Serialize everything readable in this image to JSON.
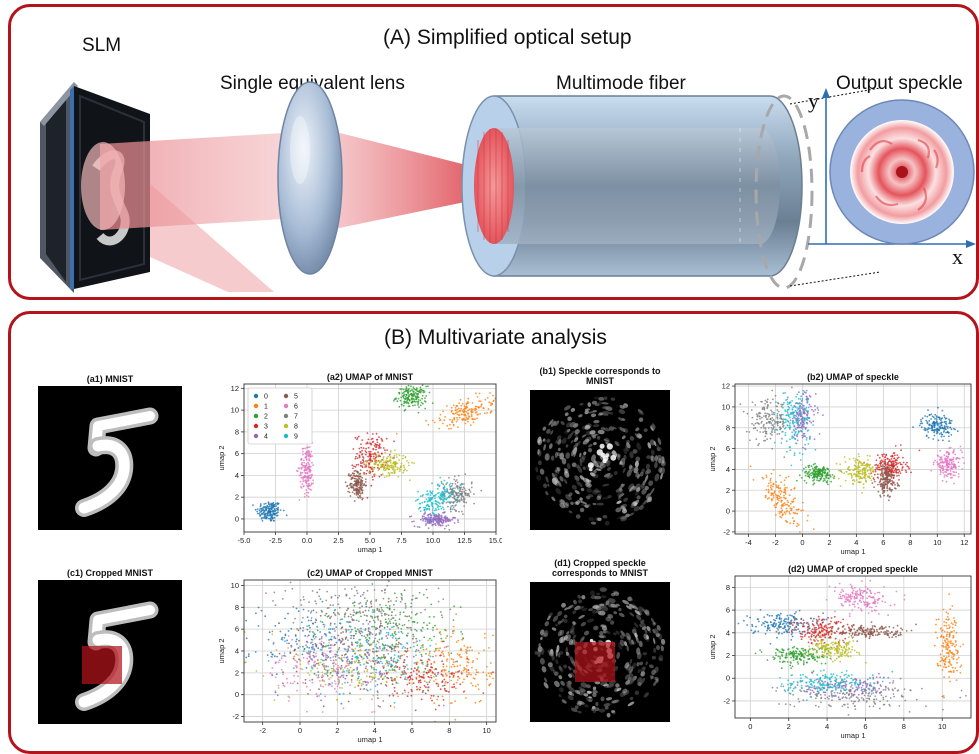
{
  "section_a": {
    "title": "(A) Simplified optical setup",
    "labels": {
      "slm": "SLM",
      "lens": "Single equivalent lens",
      "fiber": "Multimode fiber",
      "output": "Output speckle",
      "axis_y": "y",
      "axis_x": "x"
    }
  },
  "section_b": {
    "title": "(B) Multivariate analysis",
    "a1_title": "(a1) MNIST",
    "b1_title_line1": "(b1) Speckle corresponds to",
    "b1_title_line2": "MNIST",
    "c1_title": "(c1) Cropped MNIST",
    "d1_title_line1": "(d1) Cropped speckle",
    "d1_title_line2": "corresponds to MNIST"
  },
  "colors": {
    "frame": "#b3141b",
    "classes": [
      "#1f77b4",
      "#ff7f0e",
      "#2ca02c",
      "#d62728",
      "#9467bd",
      "#8c564b",
      "#e377c2",
      "#7f7f7f",
      "#bcbd22",
      "#17becf"
    ]
  },
  "chart_data": [
    {
      "id": "a2",
      "type": "scatter",
      "title": "(a2) UMAP of MNIST",
      "xlabel": "umap 1",
      "ylabel": "umap 2",
      "xlim": [
        -5.0,
        15.0
      ],
      "ylim": [
        -1.2,
        12.4
      ],
      "xticks": [
        -5.0,
        -2.5,
        0.0,
        2.5,
        5.0,
        7.5,
        10.0,
        12.5,
        15.0
      ],
      "xticklabels": [
        "-5.0",
        "-2.5",
        "0.0",
        "2.5",
        "5.0",
        "7.5",
        "10.0",
        "12.5",
        "15.0"
      ],
      "yticks": [
        0,
        2,
        4,
        6,
        8,
        10,
        12
      ],
      "yticklabels": [
        "0",
        "2",
        "4",
        "6",
        "8",
        "10",
        "12"
      ],
      "grid": true,
      "legend": {
        "placement": "top-left",
        "labels": [
          "0",
          "1",
          "2",
          "3",
          "4",
          "5",
          "6",
          "7",
          "8",
          "9"
        ]
      },
      "clusters": [
        {
          "label": "0",
          "cx": -3.0,
          "cy": 0.7,
          "sx": 0.5,
          "sy": 0.5
        },
        {
          "label": "1",
          "cx": 12.7,
          "cy": 9.8,
          "sx": 0.5,
          "sy": 1.4,
          "rot": -1.1
        },
        {
          "label": "2",
          "cx": 8.3,
          "cy": 11.2,
          "sx": 0.6,
          "sy": 0.5
        },
        {
          "label": "3",
          "cx": 5.1,
          "cy": 5.8,
          "sx": 0.6,
          "sy": 1.0
        },
        {
          "label": "4",
          "cx": 10.2,
          "cy": -0.1,
          "sx": 0.8,
          "sy": 0.3
        },
        {
          "label": "5",
          "cx": 4.0,
          "cy": 3.2,
          "sx": 0.3,
          "sy": 0.7
        },
        {
          "label": "6",
          "cx": 0.0,
          "cy": 4.6,
          "sx": 0.3,
          "sy": 1.2
        },
        {
          "label": "7",
          "cx": 11.9,
          "cy": 2.3,
          "sx": 0.6,
          "sy": 0.7
        },
        {
          "label": "8",
          "cx": 6.5,
          "cy": 5.0,
          "sx": 0.8,
          "sy": 0.5
        },
        {
          "label": "9",
          "cx": 10.3,
          "cy": 1.8,
          "sx": 0.9,
          "sy": 0.6,
          "rot": 0.6
        }
      ]
    },
    {
      "id": "b2",
      "type": "scatter",
      "title": "(b2) UMAP of speckle",
      "xlabel": "umap 1",
      "ylabel": "umap 2",
      "xlim": [
        -5.0,
        12.5
      ],
      "ylim": [
        -2.2,
        12.2
      ],
      "xticks": [
        -4,
        -2,
        0,
        2,
        4,
        6,
        8,
        10,
        12
      ],
      "xticklabels": [
        "-4",
        "-2",
        "0",
        "2",
        "4",
        "6",
        "8",
        "10",
        "12"
      ],
      "yticks": [
        -2,
        0,
        2,
        4,
        6,
        8,
        10,
        12
      ],
      "yticklabels": [
        "-2",
        "0",
        "2",
        "4",
        "6",
        "8",
        "10",
        "12"
      ],
      "grid": true,
      "clusters": [
        {
          "label": "0",
          "cx": 10.0,
          "cy": 8.2,
          "sx": 0.6,
          "sy": 0.6
        },
        {
          "label": "1",
          "cx": -1.5,
          "cy": 1.2,
          "sx": 0.5,
          "sy": 1.4,
          "rot": 0.5
        },
        {
          "label": "2",
          "cx": 1.2,
          "cy": 3.6,
          "sx": 0.6,
          "sy": 0.4
        },
        {
          "label": "3",
          "cx": 6.5,
          "cy": 4.3,
          "sx": 0.6,
          "sy": 0.7
        },
        {
          "label": "4",
          "cx": 0.0,
          "cy": 9.0,
          "sx": 0.5,
          "sy": 1.2
        },
        {
          "label": "5",
          "cx": 6.2,
          "cy": 3.0,
          "sx": 0.4,
          "sy": 0.8
        },
        {
          "label": "6",
          "cx": 10.8,
          "cy": 4.5,
          "sx": 0.5,
          "sy": 0.6
        },
        {
          "label": "7",
          "cx": -2.5,
          "cy": 8.6,
          "sx": 0.7,
          "sy": 1.0
        },
        {
          "label": "8",
          "cx": 4.3,
          "cy": 3.8,
          "sx": 0.6,
          "sy": 0.6
        },
        {
          "label": "9",
          "cx": -0.6,
          "cy": 8.8,
          "sx": 0.6,
          "sy": 1.4
        }
      ]
    },
    {
      "id": "c2",
      "type": "scatter",
      "title": "(c2) UMAP of Cropped MNIST",
      "xlabel": "umap 1",
      "ylabel": "umap 2",
      "xlim": [
        -3.0,
        10.5
      ],
      "ylim": [
        -2.5,
        10.5
      ],
      "xticks": [
        -2,
        0,
        2,
        4,
        6,
        8,
        10
      ],
      "xticklabels": [
        "-2",
        "0",
        "2",
        "4",
        "6",
        "8",
        "10"
      ],
      "yticks": [
        -2,
        0,
        2,
        4,
        6,
        8,
        10
      ],
      "yticklabels": [
        "-2",
        "0",
        "2",
        "4",
        "6",
        "8",
        "10"
      ],
      "grid": true,
      "clusters": [
        {
          "label": "0",
          "cx": 1.0,
          "cy": 5.0,
          "sx": 1.8,
          "sy": 1.8
        },
        {
          "label": "1",
          "cx": 8.5,
          "cy": 2.5,
          "sx": 0.9,
          "sy": 1.8
        },
        {
          "label": "2",
          "cx": 5.0,
          "cy": 6.0,
          "sx": 1.8,
          "sy": 1.5
        },
        {
          "label": "3",
          "cx": 6.5,
          "cy": 1.5,
          "sx": 1.3,
          "sy": 1.0
        },
        {
          "label": "4",
          "cx": 3.5,
          "cy": 3.5,
          "sx": 1.8,
          "sy": 1.8
        },
        {
          "label": "5",
          "cx": 3.0,
          "cy": 4.5,
          "sx": 2.0,
          "sy": 2.0
        },
        {
          "label": "6",
          "cx": 1.0,
          "cy": 2.5,
          "sx": 1.5,
          "sy": 1.5
        },
        {
          "label": "7",
          "cx": 3.0,
          "cy": 8.0,
          "sx": 2.2,
          "sy": 1.2
        },
        {
          "label": "8",
          "cx": 3.5,
          "cy": 2.5,
          "sx": 2.0,
          "sy": 1.5
        },
        {
          "label": "9",
          "cx": 4.0,
          "cy": 3.5,
          "sx": 2.0,
          "sy": 1.8
        }
      ]
    },
    {
      "id": "d2",
      "type": "scatter",
      "title": "(d2) UMAP of cropped speckle",
      "xlabel": "umap 1",
      "ylabel": "umap 2",
      "xlim": [
        -0.8,
        11.5
      ],
      "ylim": [
        -3.5,
        9.0
      ],
      "xticks": [
        0,
        2,
        4,
        6,
        8,
        10
      ],
      "xticklabels": [
        "0",
        "2",
        "4",
        "6",
        "8",
        "10"
      ],
      "yticks": [
        -2,
        0,
        2,
        4,
        6,
        8
      ],
      "yticklabels": [
        "-2",
        "0",
        "2",
        "4",
        "6",
        "8"
      ],
      "grid": true,
      "clusters": [
        {
          "label": "0",
          "cx": 1.6,
          "cy": 4.8,
          "sx": 0.8,
          "sy": 0.5
        },
        {
          "label": "1",
          "cx": 10.3,
          "cy": 3.0,
          "sx": 0.3,
          "sy": 1.5
        },
        {
          "label": "2",
          "cx": 2.5,
          "cy": 2.0,
          "sx": 0.8,
          "sy": 0.4
        },
        {
          "label": "3",
          "cx": 3.7,
          "cy": 4.2,
          "sx": 0.8,
          "sy": 0.6
        },
        {
          "label": "4",
          "cx": 5.0,
          "cy": -0.8,
          "sx": 1.2,
          "sy": 0.5
        },
        {
          "label": "5",
          "cx": 6.3,
          "cy": 4.1,
          "sx": 1.0,
          "sy": 0.3
        },
        {
          "label": "6",
          "cx": 5.8,
          "cy": 7.0,
          "sx": 0.7,
          "sy": 0.6
        },
        {
          "label": "7",
          "cx": 5.3,
          "cy": -1.5,
          "sx": 1.8,
          "sy": 0.6
        },
        {
          "label": "8",
          "cx": 4.4,
          "cy": 2.5,
          "sx": 0.6,
          "sy": 0.4
        },
        {
          "label": "9",
          "cx": 4.0,
          "cy": -0.4,
          "sx": 1.2,
          "sy": 0.5
        }
      ]
    }
  ]
}
